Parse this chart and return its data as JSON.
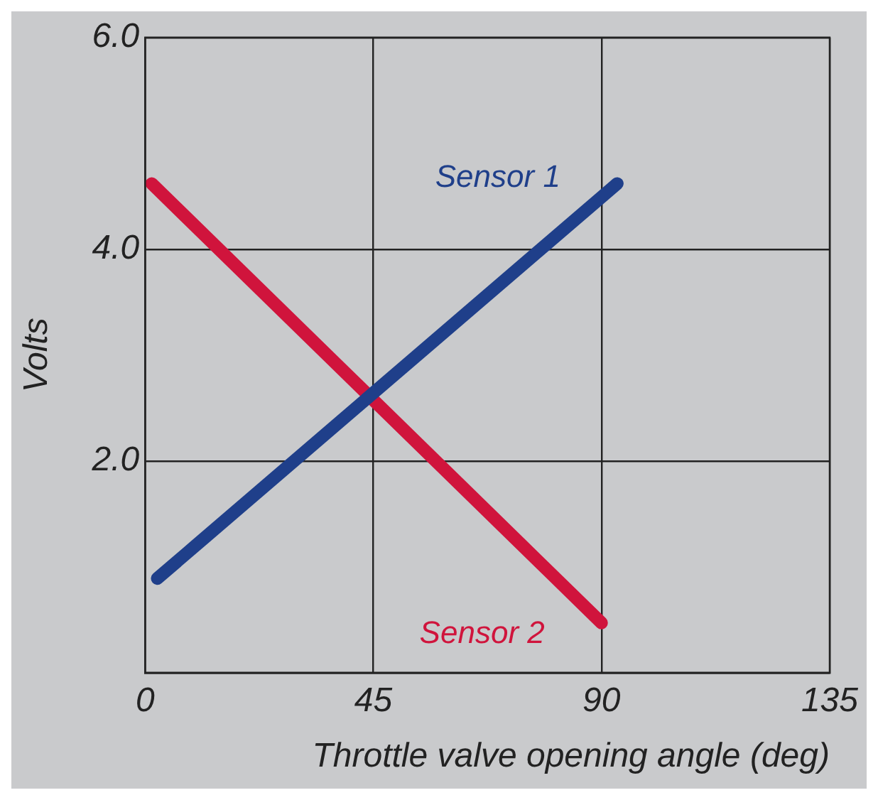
{
  "chart_data": {
    "type": "line",
    "xlabel": "Throttle valve opening angle (deg)",
    "ylabel": "Volts",
    "xlim": [
      0,
      135
    ],
    "xticks": [
      0,
      45,
      90,
      135
    ],
    "ylim": [
      0,
      6
    ],
    "yticks": [
      {
        "value": 0,
        "label": null
      },
      {
        "value": 2,
        "label": "2.0"
      },
      {
        "value": 4,
        "label": "4.0"
      },
      {
        "value": 6,
        "label": "6.0"
      }
    ],
    "grid": true,
    "legend": false,
    "marker": "none",
    "line_style": "solid",
    "series": [
      {
        "name": "Sensor 1",
        "color": "#1f3f8a",
        "x": [
          2.4,
          93.1
        ],
        "values": [
          0.89,
          4.62
        ]
      },
      {
        "name": "Sensor 2",
        "color": "#d0143c",
        "x": [
          1.3,
          90
        ],
        "values": [
          4.62,
          0.47
        ]
      }
    ]
  }
}
